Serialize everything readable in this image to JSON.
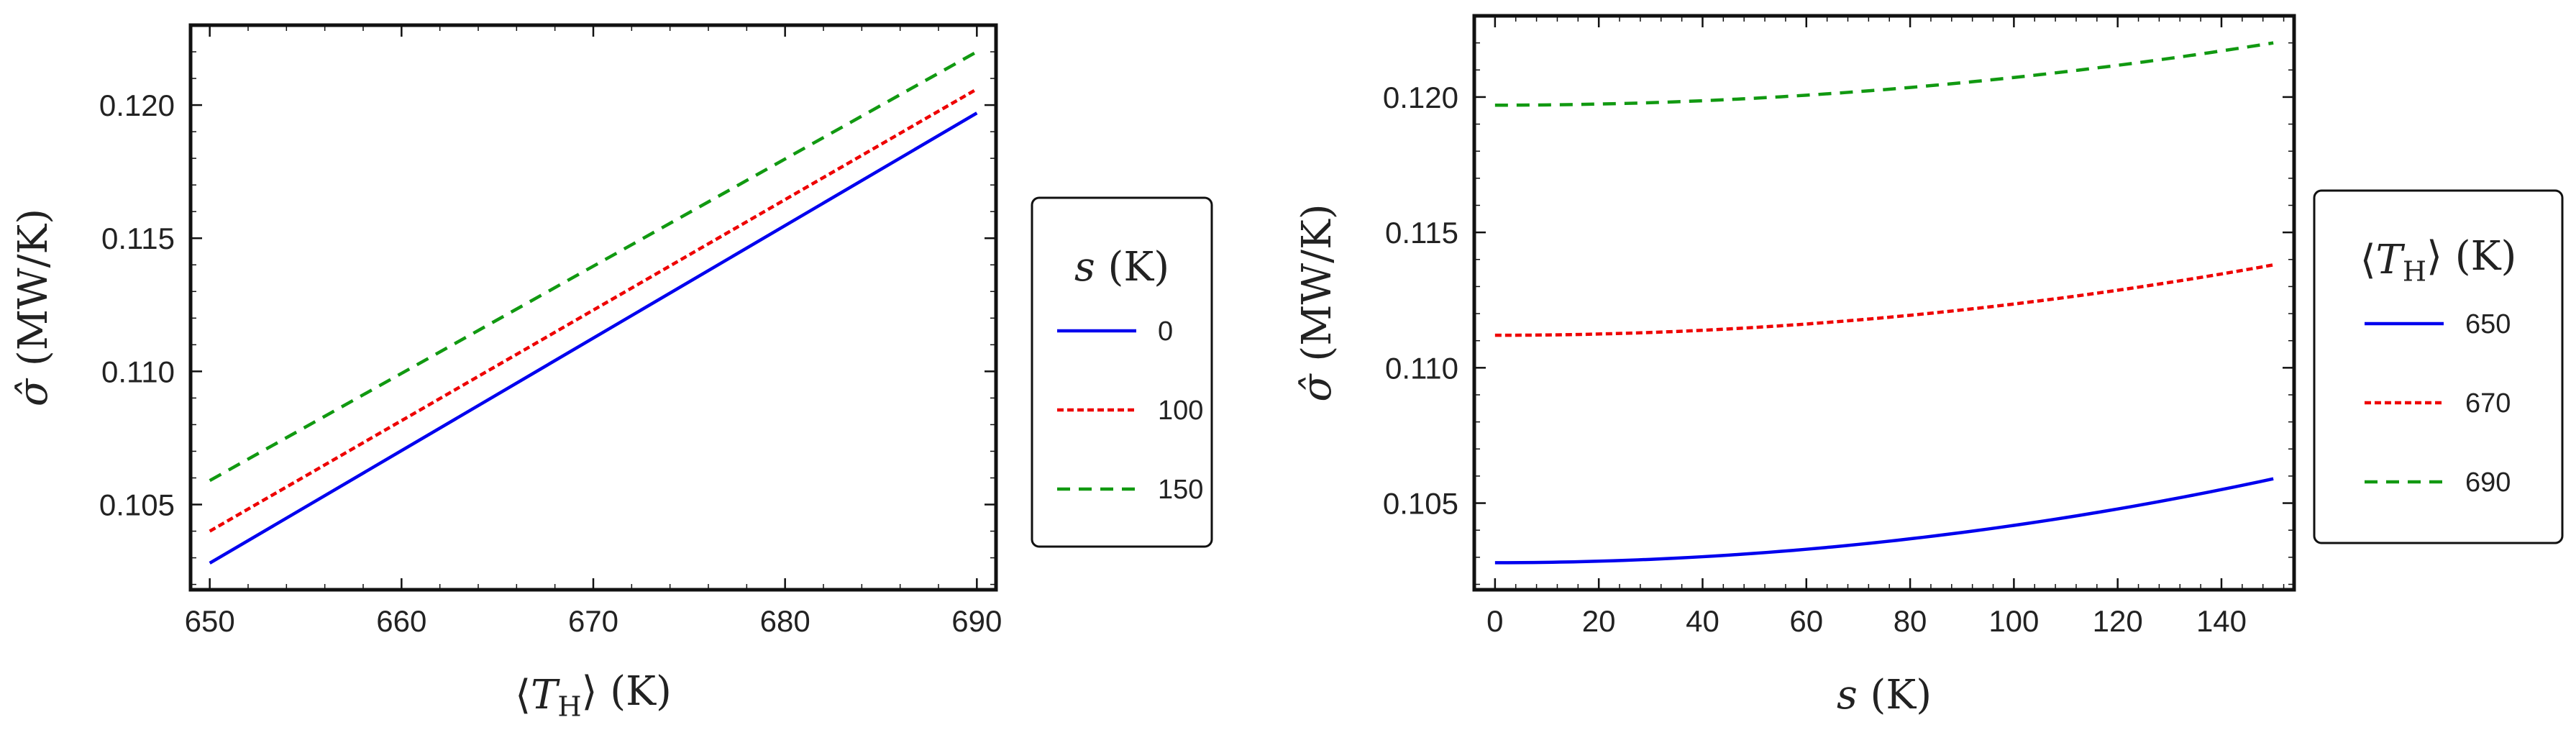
{
  "colors": {
    "series_1": "#0000ee",
    "series_2": "#ee0000",
    "series_3": "#119911",
    "frame": "#111111",
    "text": "#222222"
  },
  "chart_data": [
    {
      "type": "line",
      "id": "left",
      "xlabel": "⟨T_H⟩ (K)",
      "ylabel": "σ̂ (MW/K)",
      "xlim": [
        649,
        691
      ],
      "ylim": [
        0.1018,
        0.123
      ],
      "xticks": [
        650,
        660,
        670,
        680,
        690
      ],
      "xtick_labels": [
        "650",
        "660",
        "670",
        "680",
        "690"
      ],
      "yticks": [
        0.105,
        0.11,
        0.115,
        0.12
      ],
      "ytick_labels": [
        "0.105",
        "0.110",
        "0.115",
        "0.120"
      ],
      "legend": {
        "title": "s (K)",
        "placement": "right"
      },
      "series": [
        {
          "name": "0",
          "style": "solid",
          "x": [
            650,
            690
          ],
          "y": [
            0.1028,
            0.1197
          ]
        },
        {
          "name": "100",
          "style": "dotted",
          "x": [
            650,
            690
          ],
          "y": [
            0.104,
            0.1206
          ]
        },
        {
          "name": "150",
          "style": "dashed",
          "x": [
            650,
            690
          ],
          "y": [
            0.1059,
            0.122
          ]
        }
      ]
    },
    {
      "type": "line",
      "id": "right",
      "xlabel": "s (K)",
      "ylabel": "σ̂ (MW/K)",
      "xlim": [
        -4,
        154
      ],
      "ylim": [
        0.1018,
        0.123
      ],
      "xticks": [
        0,
        20,
        40,
        60,
        80,
        100,
        120,
        140
      ],
      "xtick_labels": [
        "0",
        "20",
        "40",
        "60",
        "80",
        "100",
        "120",
        "140"
      ],
      "yticks": [
        0.105,
        0.11,
        0.115,
        0.12
      ],
      "ytick_labels": [
        "0.105",
        "0.110",
        "0.115",
        "0.120"
      ],
      "legend": {
        "title": "⟨T_H⟩ (K)",
        "placement": "right"
      },
      "series": [
        {
          "name": "650",
          "style": "solid",
          "y0": 0.1028,
          "y150": 0.1059
        },
        {
          "name": "670",
          "style": "dotted",
          "y0": 0.1112,
          "y150": 0.1138
        },
        {
          "name": "690",
          "style": "dashed",
          "y0": 0.1197,
          "y150": 0.122
        }
      ]
    }
  ]
}
